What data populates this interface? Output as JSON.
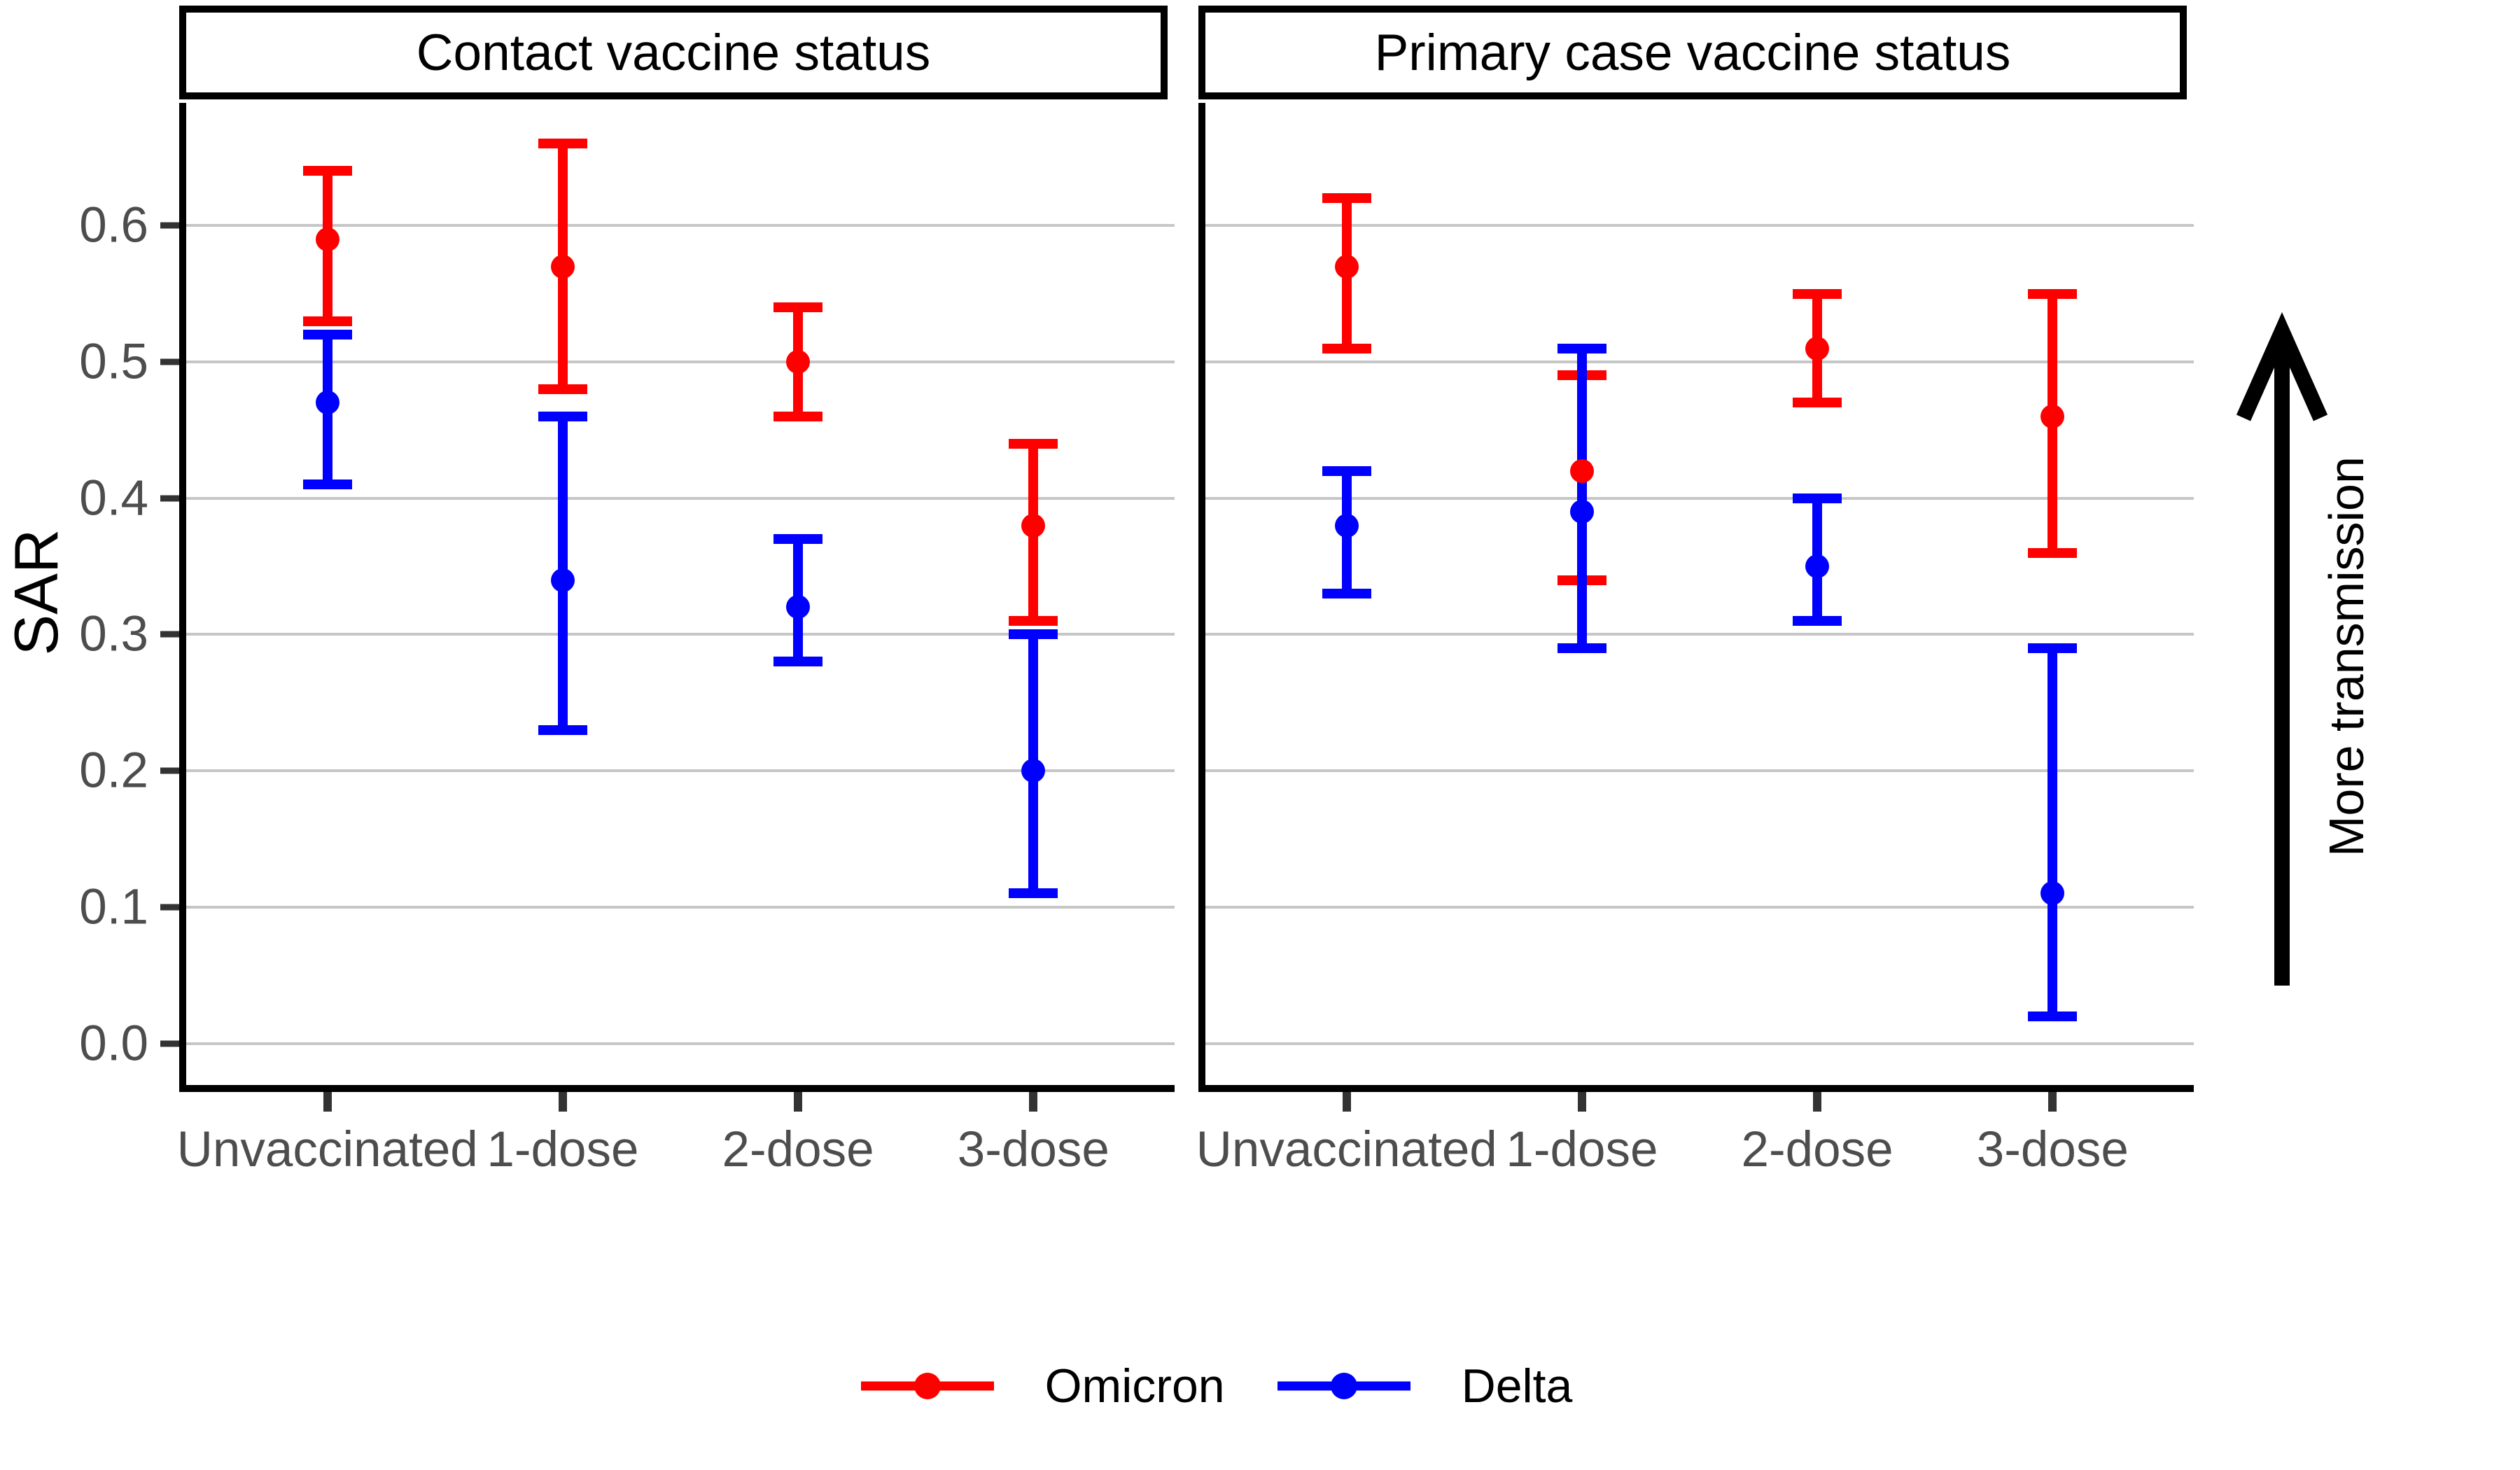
{
  "chart_data": {
    "type": "pointrange",
    "title": "",
    "xlabel": "",
    "ylabel": "SAR",
    "categories": [
      "Unvaccinated",
      "1-dose",
      "2-dose",
      "3-dose"
    ],
    "ylim": [
      -0.0305,
      0.69
    ],
    "yticks": [
      0.0,
      0.1,
      0.2,
      0.3,
      0.4,
      0.5,
      0.6
    ],
    "ytick_labels": [
      "0.0",
      "0.1",
      "0.2",
      "0.3",
      "0.4",
      "0.5",
      "0.6"
    ],
    "grid": "horizontal-major-only",
    "legend_position": "bottom",
    "facets": [
      {
        "title": "Contact vaccine status",
        "series": [
          {
            "name": "Omicron",
            "color": "#FF0000",
            "values": [
              {
                "category": "Unvaccinated",
                "est": 0.59,
                "lo": 0.53,
                "hi": 0.64
              },
              {
                "category": "1-dose",
                "est": 0.57,
                "lo": 0.48,
                "hi": 0.66
              },
              {
                "category": "2-dose",
                "est": 0.5,
                "lo": 0.46,
                "hi": 0.54
              },
              {
                "category": "3-dose",
                "est": 0.38,
                "lo": 0.31,
                "hi": 0.44
              }
            ]
          },
          {
            "name": "Delta",
            "color": "#0000FF",
            "values": [
              {
                "category": "Unvaccinated",
                "est": 0.47,
                "lo": 0.41,
                "hi": 0.52
              },
              {
                "category": "1-dose",
                "est": 0.34,
                "lo": 0.23,
                "hi": 0.46
              },
              {
                "category": "2-dose",
                "est": 0.32,
                "lo": 0.28,
                "hi": 0.37
              },
              {
                "category": "3-dose",
                "est": 0.2,
                "lo": 0.11,
                "hi": 0.3
              }
            ]
          }
        ]
      },
      {
        "title": "Primary case vaccine status",
        "series": [
          {
            "name": "Omicron",
            "color": "#FF0000",
            "values": [
              {
                "category": "Unvaccinated",
                "est": 0.57,
                "lo": 0.51,
                "hi": 0.62
              },
              {
                "category": "1-dose",
                "est": 0.42,
                "lo": 0.34,
                "hi": 0.49
              },
              {
                "category": "2-dose",
                "est": 0.51,
                "lo": 0.47,
                "hi": 0.55
              },
              {
                "category": "3-dose",
                "est": 0.46,
                "lo": 0.36,
                "hi": 0.55
              }
            ]
          },
          {
            "name": "Delta",
            "color": "#0000FF",
            "values": [
              {
                "category": "Unvaccinated",
                "est": 0.38,
                "lo": 0.33,
                "hi": 0.42
              },
              {
                "category": "1-dose",
                "est": 0.39,
                "lo": 0.29,
                "hi": 0.51
              },
              {
                "category": "2-dose",
                "est": 0.35,
                "lo": 0.31,
                "hi": 0.4
              },
              {
                "category": "3-dose",
                "est": 0.11,
                "lo": 0.02,
                "hi": 0.29
              }
            ]
          }
        ]
      }
    ],
    "legend": [
      {
        "label": "Omicron",
        "color": "#FF0000"
      },
      {
        "label": "Delta",
        "color": "#0000FF"
      }
    ],
    "annotation": {
      "text": "More transmission",
      "direction": "up"
    }
  },
  "colors": {
    "axis_text": "#4D4D4D",
    "axis_line": "#000000",
    "tick_mark": "#333333",
    "gridline": "#C6C6C6",
    "strip_border": "#000000",
    "strip_background": "#FFFFFF",
    "background": "#FFFFFF",
    "annotation_text": "#000000"
  }
}
